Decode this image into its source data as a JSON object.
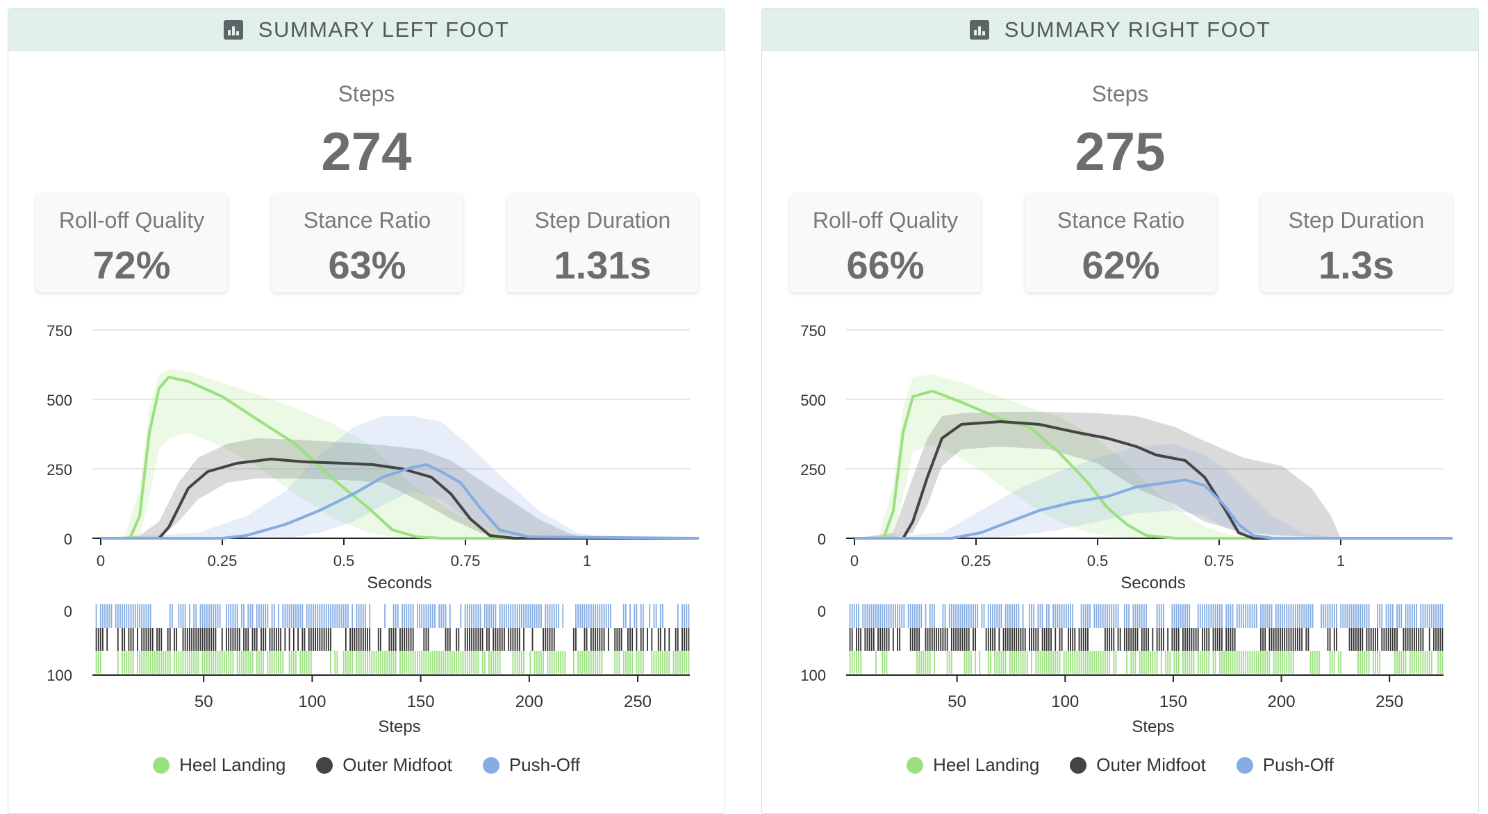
{
  "panels": [
    {
      "title": "SUMMARY LEFT FOOT",
      "steps_label": "Steps",
      "steps_value": "274",
      "stats": [
        {
          "label": "Roll-off Quality",
          "value": "72%"
        },
        {
          "label": "Stance Ratio",
          "value": "63%"
        },
        {
          "label": "Step Duration",
          "value": "1.31s"
        }
      ]
    },
    {
      "title": "SUMMARY RIGHT FOOT",
      "steps_label": "Steps",
      "steps_value": "275",
      "stats": [
        {
          "label": "Roll-off Quality",
          "value": "66%"
        },
        {
          "label": "Stance Ratio",
          "value": "62%"
        },
        {
          "label": "Step Duration",
          "value": "1.3s"
        }
      ]
    }
  ],
  "legend": [
    {
      "label": "Heel Landing",
      "color": "#9be07f"
    },
    {
      "label": "Outer Midfoot",
      "color": "#444444"
    },
    {
      "label": "Push-Off",
      "color": "#85ace3"
    }
  ],
  "chart_data": [
    {
      "type": "area",
      "title": "",
      "xlabel": "Seconds",
      "ylabel": "",
      "xlim": [
        0,
        1.23
      ],
      "ylim": [
        0,
        750
      ],
      "x_ticks": [
        "0",
        "0.25",
        "0.5",
        "0.75",
        "1"
      ],
      "y_ticks": [
        "0",
        "250",
        "500",
        "750"
      ],
      "grid": true,
      "series": [
        {
          "name": "Heel Landing",
          "color": "#9be07f",
          "mean": [
            [
              0,
              0
            ],
            [
              0.06,
              0
            ],
            [
              0.08,
              80
            ],
            [
              0.1,
              380
            ],
            [
              0.12,
              540
            ],
            [
              0.14,
              580
            ],
            [
              0.18,
              565
            ],
            [
              0.25,
              510
            ],
            [
              0.32,
              430
            ],
            [
              0.4,
              340
            ],
            [
              0.48,
              210
            ],
            [
              0.55,
              110
            ],
            [
              0.6,
              30
            ],
            [
              0.65,
              5
            ],
            [
              0.7,
              0
            ],
            [
              1.23,
              0
            ]
          ],
          "band": [
            [
              0,
              0,
              0
            ],
            [
              0.05,
              0,
              10
            ],
            [
              0.08,
              0,
              180
            ],
            [
              0.1,
              150,
              470
            ],
            [
              0.12,
              320,
              590
            ],
            [
              0.14,
              360,
              610
            ],
            [
              0.18,
              380,
              600
            ],
            [
              0.25,
              330,
              560
            ],
            [
              0.32,
              260,
              520
            ],
            [
              0.4,
              160,
              470
            ],
            [
              0.48,
              70,
              410
            ],
            [
              0.55,
              20,
              340
            ],
            [
              0.6,
              5,
              260
            ],
            [
              0.65,
              0,
              180
            ],
            [
              0.72,
              0,
              100
            ],
            [
              0.8,
              0,
              30
            ],
            [
              0.9,
              0,
              0
            ],
            [
              1.23,
              0,
              0
            ]
          ]
        },
        {
          "name": "Outer Midfoot",
          "color": "#444444",
          "mean": [
            [
              0,
              0
            ],
            [
              0.12,
              0
            ],
            [
              0.14,
              40
            ],
            [
              0.18,
              180
            ],
            [
              0.22,
              240
            ],
            [
              0.28,
              270
            ],
            [
              0.35,
              285
            ],
            [
              0.42,
              275
            ],
            [
              0.5,
              270
            ],
            [
              0.56,
              265
            ],
            [
              0.62,
              250
            ],
            [
              0.68,
              220
            ],
            [
              0.72,
              160
            ],
            [
              0.76,
              70
            ],
            [
              0.8,
              10
            ],
            [
              0.85,
              0
            ],
            [
              1.23,
              0
            ]
          ],
          "band": [
            [
              0,
              0,
              0
            ],
            [
              0.08,
              0,
              10
            ],
            [
              0.12,
              0,
              60
            ],
            [
              0.16,
              60,
              200
            ],
            [
              0.2,
              140,
              290
            ],
            [
              0.26,
              200,
              340
            ],
            [
              0.32,
              215,
              360
            ],
            [
              0.4,
              215,
              355
            ],
            [
              0.5,
              210,
              345
            ],
            [
              0.58,
              200,
              335
            ],
            [
              0.66,
              130,
              320
            ],
            [
              0.72,
              70,
              280
            ],
            [
              0.78,
              20,
              210
            ],
            [
              0.84,
              5,
              140
            ],
            [
              0.9,
              0,
              70
            ],
            [
              0.96,
              0,
              20
            ],
            [
              1.0,
              0,
              0
            ],
            [
              1.23,
              0,
              0
            ]
          ]
        },
        {
          "name": "Push-Off",
          "color": "#85ace3",
          "mean": [
            [
              0,
              0
            ],
            [
              0.25,
              0
            ],
            [
              0.3,
              10
            ],
            [
              0.38,
              50
            ],
            [
              0.45,
              100
            ],
            [
              0.52,
              160
            ],
            [
              0.58,
              220
            ],
            [
              0.64,
              255
            ],
            [
              0.67,
              265
            ],
            [
              0.7,
              240
            ],
            [
              0.74,
              200
            ],
            [
              0.78,
              110
            ],
            [
              0.82,
              30
            ],
            [
              0.88,
              5
            ],
            [
              1.23,
              0
            ]
          ],
          "band": [
            [
              0,
              0,
              0
            ],
            [
              0.2,
              0,
              20
            ],
            [
              0.3,
              0,
              80
            ],
            [
              0.38,
              0,
              170
            ],
            [
              0.45,
              20,
              300
            ],
            [
              0.52,
              60,
              400
            ],
            [
              0.58,
              120,
              440
            ],
            [
              0.64,
              170,
              440
            ],
            [
              0.7,
              140,
              420
            ],
            [
              0.76,
              60,
              330
            ],
            [
              0.82,
              20,
              230
            ],
            [
              0.9,
              5,
              100
            ],
            [
              0.98,
              0,
              20
            ],
            [
              1.05,
              0,
              0
            ],
            [
              1.23,
              0,
              0
            ]
          ]
        }
      ]
    },
    {
      "type": "area",
      "title": "",
      "xlabel": "Seconds",
      "ylabel": "",
      "xlim": [
        0,
        1.23
      ],
      "ylim": [
        0,
        750
      ],
      "x_ticks": [
        "0",
        "0.25",
        "0.5",
        "0.75",
        "1"
      ],
      "y_ticks": [
        "0",
        "250",
        "500",
        "750"
      ],
      "grid": true,
      "series": [
        {
          "name": "Heel Landing",
          "color": "#9be07f",
          "mean": [
            [
              0,
              0
            ],
            [
              0.06,
              0
            ],
            [
              0.08,
              100
            ],
            [
              0.1,
              380
            ],
            [
              0.12,
              510
            ],
            [
              0.16,
              530
            ],
            [
              0.22,
              490
            ],
            [
              0.3,
              430
            ],
            [
              0.36,
              400
            ],
            [
              0.42,
              310
            ],
            [
              0.48,
              200
            ],
            [
              0.52,
              110
            ],
            [
              0.56,
              50
            ],
            [
              0.6,
              10
            ],
            [
              0.66,
              0
            ],
            [
              1.23,
              0
            ]
          ],
          "band": [
            [
              0,
              0,
              0
            ],
            [
              0.05,
              0,
              10
            ],
            [
              0.08,
              0,
              190
            ],
            [
              0.1,
              150,
              470
            ],
            [
              0.12,
              310,
              580
            ],
            [
              0.16,
              340,
              590
            ],
            [
              0.22,
              290,
              560
            ],
            [
              0.3,
              190,
              510
            ],
            [
              0.36,
              120,
              470
            ],
            [
              0.42,
              60,
              440
            ],
            [
              0.48,
              20,
              380
            ],
            [
              0.54,
              5,
              300
            ],
            [
              0.6,
              0,
              200
            ],
            [
              0.66,
              0,
              110
            ],
            [
              0.72,
              0,
              40
            ],
            [
              0.8,
              0,
              0
            ],
            [
              1.23,
              0,
              0
            ]
          ]
        },
        {
          "name": "Outer Midfoot",
          "color": "#444444",
          "mean": [
            [
              0,
              0
            ],
            [
              0.1,
              0
            ],
            [
              0.12,
              60
            ],
            [
              0.15,
              220
            ],
            [
              0.18,
              360
            ],
            [
              0.22,
              410
            ],
            [
              0.3,
              420
            ],
            [
              0.38,
              410
            ],
            [
              0.46,
              380
            ],
            [
              0.52,
              360
            ],
            [
              0.58,
              330
            ],
            [
              0.62,
              300
            ],
            [
              0.68,
              280
            ],
            [
              0.72,
              220
            ],
            [
              0.76,
              110
            ],
            [
              0.79,
              20
            ],
            [
              0.82,
              0
            ],
            [
              1.23,
              0
            ]
          ],
          "band": [
            [
              0,
              0,
              0
            ],
            [
              0.08,
              0,
              20
            ],
            [
              0.12,
              20,
              220
            ],
            [
              0.15,
              120,
              360
            ],
            [
              0.18,
              260,
              440
            ],
            [
              0.22,
              320,
              450
            ],
            [
              0.3,
              330,
              455
            ],
            [
              0.4,
              320,
              455
            ],
            [
              0.5,
              270,
              450
            ],
            [
              0.58,
              180,
              440
            ],
            [
              0.66,
              120,
              400
            ],
            [
              0.72,
              60,
              350
            ],
            [
              0.8,
              20,
              290
            ],
            [
              0.88,
              10,
              260
            ],
            [
              0.94,
              5,
              180
            ],
            [
              0.98,
              0,
              80
            ],
            [
              1.0,
              0,
              0
            ],
            [
              1.23,
              0,
              0
            ]
          ]
        },
        {
          "name": "Push-Off",
          "color": "#85ace3",
          "mean": [
            [
              0,
              0
            ],
            [
              0.2,
              0
            ],
            [
              0.26,
              20
            ],
            [
              0.32,
              60
            ],
            [
              0.38,
              100
            ],
            [
              0.45,
              130
            ],
            [
              0.52,
              150
            ],
            [
              0.58,
              185
            ],
            [
              0.64,
              200
            ],
            [
              0.68,
              210
            ],
            [
              0.72,
              190
            ],
            [
              0.76,
              120
            ],
            [
              0.79,
              50
            ],
            [
              0.82,
              10
            ],
            [
              0.86,
              0
            ],
            [
              1.23,
              0
            ]
          ],
          "band": [
            [
              0,
              0,
              0
            ],
            [
              0.18,
              0,
              20
            ],
            [
              0.26,
              0,
              100
            ],
            [
              0.34,
              10,
              180
            ],
            [
              0.42,
              30,
              240
            ],
            [
              0.5,
              60,
              290
            ],
            [
              0.58,
              90,
              330
            ],
            [
              0.66,
              100,
              340
            ],
            [
              0.72,
              80,
              300
            ],
            [
              0.76,
              40,
              250
            ],
            [
              0.8,
              10,
              180
            ],
            [
              0.86,
              0,
              80
            ],
            [
              0.92,
              0,
              20
            ],
            [
              1.0,
              0,
              0
            ],
            [
              1.23,
              0,
              0
            ]
          ]
        }
      ]
    }
  ],
  "step_charts": [
    {
      "xlabel": "Steps",
      "x_ticks": [
        "50",
        "100",
        "150",
        "200",
        "250"
      ],
      "y_ticks": [
        "0",
        "100"
      ],
      "steps_total": 274
    },
    {
      "xlabel": "Steps",
      "x_ticks": [
        "50",
        "100",
        "150",
        "200",
        "250"
      ],
      "y_ticks": [
        "0",
        "100"
      ],
      "steps_total": 275
    }
  ]
}
